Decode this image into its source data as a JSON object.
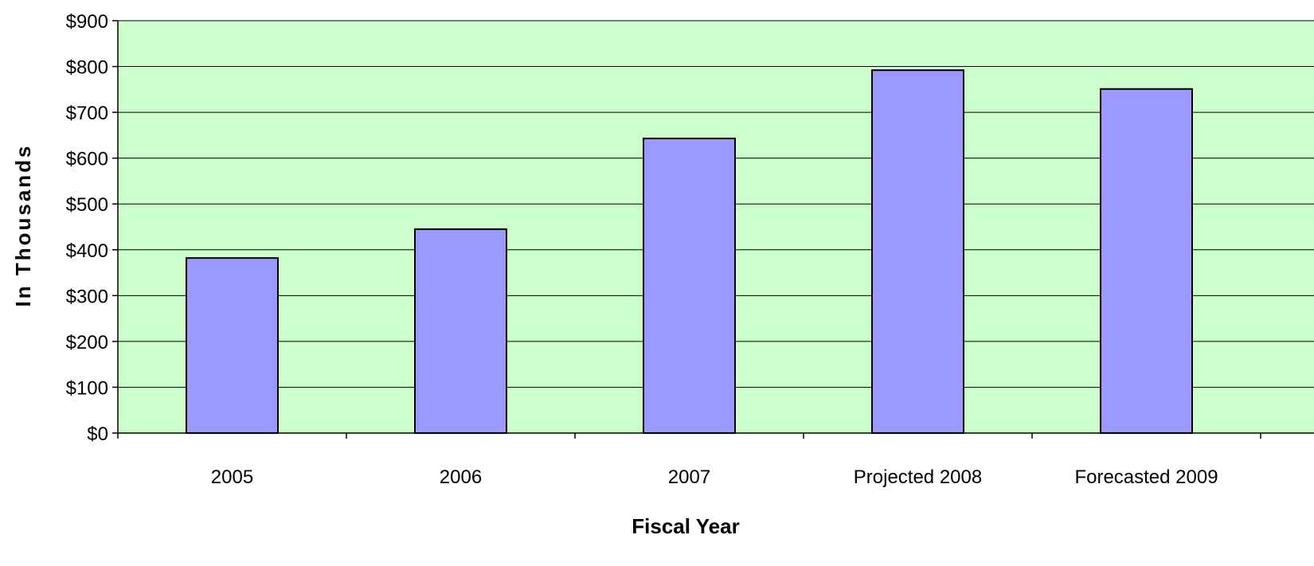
{
  "chart_data": {
    "type": "bar",
    "title": "",
    "xlabel": "Fiscal Year",
    "ylabel": "In Thousands",
    "categories": [
      "2005",
      "2006",
      "2007",
      "Projected 2008",
      "Forecasted 2009"
    ],
    "values": [
      382,
      445,
      643,
      792,
      751
    ],
    "ylim": [
      0,
      900
    ],
    "yticks": [
      0,
      100,
      200,
      300,
      400,
      500,
      600,
      700,
      800,
      900
    ],
    "ytick_labels": [
      "$0",
      "$100",
      "$200",
      "$300",
      "$400",
      "$500",
      "$600",
      "$700",
      "$800",
      "$900"
    ],
    "grid": true,
    "legend": "none",
    "colors": {
      "plot_background": "#CCFFCC",
      "bar_fill": "#9999FF",
      "bar_stroke": "#000000",
      "gridline": "#000000"
    }
  }
}
